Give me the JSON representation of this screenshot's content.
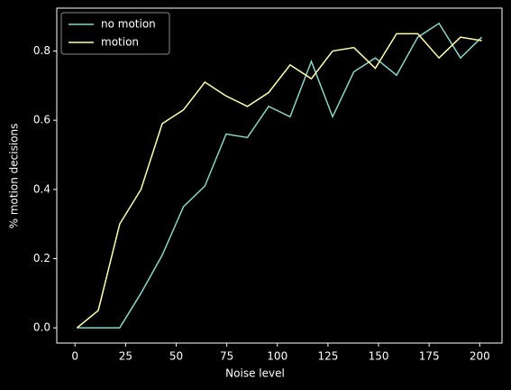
{
  "chart_data": {
    "type": "line",
    "xlabel": "Noise level",
    "ylabel": "% motion decisions",
    "x": [
      1,
      11.5,
      22.1,
      32.6,
      43.1,
      53.6,
      64.2,
      74.7,
      85.2,
      95.7,
      106.3,
      116.8,
      127.3,
      137.8,
      148.4,
      158.9,
      169.4,
      179.9,
      190.5,
      201
    ],
    "series": [
      {
        "name": "no motion",
        "color": "#8dd3c7",
        "values": [
          0,
          0,
          0,
          0.1,
          0.21,
          0.35,
          0.41,
          0.56,
          0.55,
          0.64,
          0.61,
          0.77,
          0.61,
          0.74,
          0.78,
          0.73,
          0.84,
          0.88,
          0.78,
          0.84
        ]
      },
      {
        "name": "motion",
        "color": "#feffb3",
        "values": [
          0,
          0.05,
          0.3,
          0.4,
          0.59,
          0.63,
          0.71,
          0.67,
          0.64,
          0.68,
          0.76,
          0.72,
          0.8,
          0.81,
          0.75,
          0.85,
          0.85,
          0.78,
          0.84,
          0.83
        ]
      }
    ],
    "xlim": [
      -9,
      211
    ],
    "ylim": [
      -0.044,
      0.924
    ],
    "xticks": [
      0,
      25,
      50,
      75,
      100,
      125,
      150,
      175,
      200
    ],
    "yticks": [
      {
        "value": 0,
        "label": "0.0"
      },
      {
        "value": 0.2,
        "label": "0.2"
      },
      {
        "value": 0.4,
        "label": "0.4"
      },
      {
        "value": 0.6,
        "label": "0.6"
      },
      {
        "value": 0.8,
        "label": "0.8"
      }
    ],
    "legend": "upper-left"
  }
}
